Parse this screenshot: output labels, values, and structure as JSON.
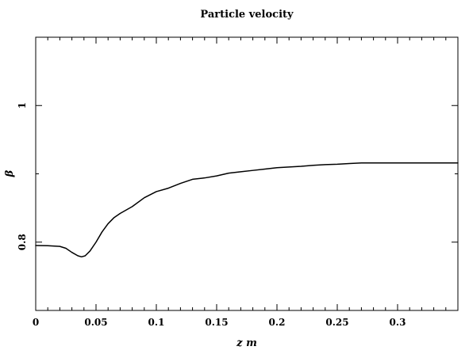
{
  "chart_data": {
    "type": "line",
    "title": "Particle velocity",
    "xlabel": "z  m",
    "ylabel": "β",
    "xlim": [
      0,
      0.35
    ],
    "ylim": [
      0.7,
      1.1
    ],
    "xticks": [
      0,
      0.05,
      0.1,
      0.15,
      0.2,
      0.25,
      0.3
    ],
    "xtick_labels": [
      "0",
      "0.05",
      "0.1",
      "0.15",
      "0.2",
      "0.25",
      "0.3"
    ],
    "yticks": [
      0.8,
      1.0
    ],
    "ytick_labels": [
      "0.8",
      "1"
    ],
    "grid": false,
    "legend": false,
    "series": [
      {
        "x": [
          0,
          0.01,
          0.02,
          0.025,
          0.03,
          0.035,
          0.038,
          0.041,
          0.045,
          0.05,
          0.055,
          0.06,
          0.065,
          0.07,
          0.08,
          0.09,
          0.1,
          0.11,
          0.12,
          0.13,
          0.14,
          0.15,
          0.16,
          0.17,
          0.18,
          0.19,
          0.2,
          0.21,
          0.22,
          0.23,
          0.24,
          0.25,
          0.26,
          0.27,
          0.28,
          0.29,
          0.3,
          0.31,
          0.32,
          0.33,
          0.34,
          0.35
        ],
        "values": [
          0.795,
          0.7948,
          0.7938,
          0.791,
          0.785,
          0.78,
          0.7785,
          0.78,
          0.787,
          0.8,
          0.815,
          0.827,
          0.836,
          0.842,
          0.852,
          0.865,
          0.874,
          0.879,
          0.886,
          0.892,
          0.894,
          0.897,
          0.901,
          0.903,
          0.905,
          0.907,
          0.909,
          0.91,
          0.911,
          0.9125,
          0.9135,
          0.914,
          0.915,
          0.916,
          0.916,
          0.916,
          0.916,
          0.916,
          0.916,
          0.916,
          0.916,
          0.916
        ]
      }
    ]
  }
}
